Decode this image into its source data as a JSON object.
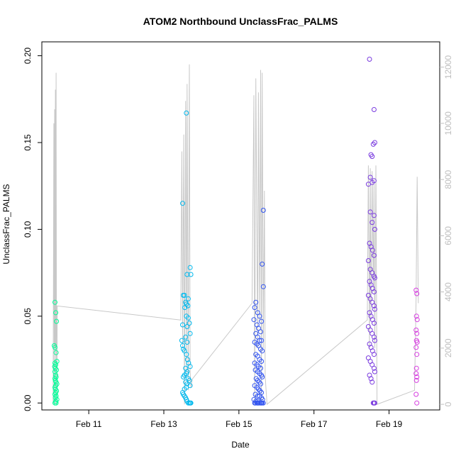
{
  "chart_data": {
    "type": "scatter",
    "title": "ATOM2 Northbound UnclassFrac_PALMS",
    "xlabel": "Date",
    "ylabel": "UnclassFrac_PALMS",
    "x_unit": "days (Feb)",
    "xlim": [
      9.75,
      20.35
    ],
    "ylim": [
      -0.004,
      0.208
    ],
    "y2lim": [
      -200,
      12900
    ],
    "x_ticks": [
      {
        "value": 11,
        "label": "Feb 11"
      },
      {
        "value": 13,
        "label": "Feb 13"
      },
      {
        "value": 15,
        "label": "Feb 15"
      },
      {
        "value": 17,
        "label": "Feb 17"
      },
      {
        "value": 19,
        "label": "Feb 19"
      }
    ],
    "y_ticks": [
      {
        "value": 0.0,
        "label": "0.00"
      },
      {
        "value": 0.05,
        "label": "0.05"
      },
      {
        "value": 0.1,
        "label": "0.10"
      },
      {
        "value": 0.15,
        "label": "0.15"
      },
      {
        "value": 0.2,
        "label": "0.20"
      }
    ],
    "y2_ticks": [
      {
        "value": 0,
        "label": "0"
      },
      {
        "value": 2000,
        "label": "2000"
      },
      {
        "value": 4000,
        "label": "4000"
      },
      {
        "value": 6000,
        "label": "6000"
      },
      {
        "value": 8000,
        "label": "8000"
      },
      {
        "value": 10000,
        "label": "10000"
      },
      {
        "value": 12000,
        "label": "12000"
      }
    ],
    "grid": false,
    "legend": "none",
    "colors": {
      "axis": "#000000",
      "secondary_axis": "#bebebe",
      "altitude_line": "#c8c8c8"
    },
    "series": [
      {
        "color": "#00ff99",
        "x": [
          10.1,
          10.12,
          10.14,
          10.08,
          10.1,
          10.13,
          10.15,
          10.1,
          10.12,
          10.09,
          10.11,
          10.14,
          10.1,
          10.12,
          10.13,
          10.1,
          10.11,
          10.13,
          10.15,
          10.12,
          10.1,
          10.11,
          10.14,
          10.12,
          10.1,
          10.13,
          10.11,
          10.15,
          10.12,
          10.1,
          10.13
        ],
        "y": [
          0.058,
          0.052,
          0.047,
          0.033,
          0.032,
          0.029,
          0.024,
          0.023,
          0.022,
          0.021,
          0.02,
          0.019,
          0.018,
          0.016,
          0.015,
          0.014,
          0.013,
          0.012,
          0.011,
          0.01,
          0.009,
          0.008,
          0.007,
          0.006,
          0.005,
          0.004,
          0.003,
          0.002,
          0.001,
          0.0,
          0.0
        ]
      },
      {
        "color": "#00b9ee",
        "x": [
          13.5,
          13.52,
          13.48,
          13.6,
          13.62,
          13.65,
          13.58,
          13.6,
          13.64,
          13.56,
          13.5,
          13.62,
          13.7,
          13.72,
          13.55,
          13.6,
          13.65,
          13.68,
          13.7,
          13.58,
          13.62,
          13.5,
          13.52,
          13.55,
          13.6,
          13.63,
          13.66,
          13.7,
          13.58,
          13.62,
          13.6,
          13.55,
          13.52,
          13.65,
          13.68,
          13.58,
          13.62,
          13.7,
          13.6,
          13.55,
          13.5,
          13.52,
          13.55,
          13.58,
          13.6,
          13.62,
          13.65,
          13.68,
          13.7,
          13.72
        ],
        "y": [
          0.115,
          0.062,
          0.036,
          0.167,
          0.074,
          0.06,
          0.058,
          0.057,
          0.056,
          0.055,
          0.045,
          0.044,
          0.078,
          0.074,
          0.062,
          0.05,
          0.049,
          0.046,
          0.04,
          0.038,
          0.035,
          0.033,
          0.031,
          0.03,
          0.028,
          0.025,
          0.023,
          0.021,
          0.02,
          0.018,
          0.017,
          0.016,
          0.015,
          0.014,
          0.013,
          0.012,
          0.011,
          0.01,
          0.009,
          0.008,
          0.006,
          0.005,
          0.004,
          0.003,
          0.002,
          0.001,
          0.0,
          0.0,
          0.0,
          0.0
        ]
      },
      {
        "color": "#3355f0",
        "x": [
          15.42,
          15.45,
          15.5,
          15.55,
          15.6,
          15.62,
          15.65,
          15.4,
          15.48,
          15.52,
          15.58,
          15.45,
          15.5,
          15.55,
          15.6,
          15.42,
          15.48,
          15.52,
          15.58,
          15.62,
          15.45,
          15.5,
          15.55,
          15.6,
          15.65,
          15.42,
          15.48,
          15.52,
          15.58,
          15.44,
          15.5,
          15.55,
          15.6,
          15.62,
          15.46,
          15.5,
          15.54,
          15.58,
          15.42,
          15.48,
          15.52,
          15.56,
          15.6,
          15.44,
          15.5,
          15.55,
          15.6,
          15.63,
          15.4,
          15.45,
          15.5,
          15.55,
          15.6,
          15.65,
          15.42,
          15.48,
          15.52,
          15.58,
          15.62,
          15.44,
          15.5
        ],
        "y": [
          0.055,
          0.058,
          0.052,
          0.05,
          0.047,
          0.08,
          0.111,
          0.048,
          0.045,
          0.043,
          0.041,
          0.04,
          0.038,
          0.036,
          0.036,
          0.035,
          0.034,
          0.033,
          0.031,
          0.03,
          0.028,
          0.027,
          0.025,
          0.024,
          0.067,
          0.023,
          0.022,
          0.021,
          0.02,
          0.019,
          0.018,
          0.017,
          0.016,
          0.015,
          0.014,
          0.013,
          0.012,
          0.011,
          0.01,
          0.009,
          0.008,
          0.007,
          0.006,
          0.005,
          0.004,
          0.004,
          0.003,
          0.002,
          0.002,
          0.001,
          0.001,
          0.0,
          0.0,
          0.0,
          0.0,
          0.0,
          0.0,
          0.0,
          0.0,
          0.0,
          0.0
        ]
      },
      {
        "color": "#7a3bdf",
        "x": [
          18.48,
          18.52,
          18.55,
          18.6,
          18.62,
          18.58,
          18.5,
          18.55,
          18.6,
          18.45,
          18.5,
          18.55,
          18.6,
          18.62,
          18.48,
          18.52,
          18.56,
          18.6,
          18.45,
          18.5,
          18.55,
          18.6,
          18.62,
          18.48,
          18.52,
          18.56,
          18.6,
          18.45,
          18.5,
          18.55,
          18.6,
          18.62,
          18.48,
          18.52,
          18.56,
          18.6,
          18.45,
          18.5,
          18.55,
          18.6,
          18.62,
          18.48,
          18.52,
          18.56,
          18.6,
          18.45,
          18.5,
          18.55,
          18.6,
          18.62,
          18.48,
          18.52,
          18.55,
          18.58,
          18.6,
          18.62
        ],
        "y": [
          0.198,
          0.143,
          0.142,
          0.169,
          0.15,
          0.149,
          0.13,
          0.127,
          0.128,
          0.126,
          0.11,
          0.104,
          0.108,
          0.1,
          0.092,
          0.09,
          0.088,
          0.085,
          0.082,
          0.077,
          0.075,
          0.073,
          0.072,
          0.07,
          0.068,
          0.066,
          0.064,
          0.062,
          0.06,
          0.058,
          0.056,
          0.054,
          0.052,
          0.05,
          0.048,
          0.046,
          0.044,
          0.042,
          0.04,
          0.038,
          0.036,
          0.034,
          0.032,
          0.03,
          0.028,
          0.026,
          0.024,
          0.022,
          0.02,
          0.018,
          0.016,
          0.014,
          0.012,
          0.0,
          0.0,
          0.0
        ]
      },
      {
        "color": "#d63ee0",
        "x": [
          19.72,
          19.74,
          19.73,
          19.75,
          19.72,
          19.74,
          19.73,
          19.75,
          19.72,
          19.74,
          19.73,
          19.72,
          19.74,
          19.73,
          19.72,
          19.74
        ],
        "y": [
          0.065,
          0.063,
          0.05,
          0.048,
          0.042,
          0.04,
          0.036,
          0.035,
          0.032,
          0.028,
          0.02,
          0.017,
          0.015,
          0.013,
          0.005,
          0.0
        ]
      }
    ],
    "secondary_series": {
      "x": [
        10.05,
        10.07,
        10.08,
        10.09,
        10.1,
        10.11,
        10.12,
        10.13,
        10.14,
        10.15,
        10.16,
        13.45,
        13.48,
        13.5,
        13.53,
        13.55,
        13.58,
        13.6,
        13.62,
        13.65,
        13.68,
        13.7,
        13.72,
        13.76,
        15.35,
        15.4,
        15.42,
        15.45,
        15.5,
        15.52,
        15.55,
        15.58,
        15.6,
        15.62,
        15.65,
        15.68,
        15.7,
        15.75,
        18.42,
        18.45,
        18.48,
        18.5,
        18.52,
        18.55,
        18.58,
        18.6,
        18.62,
        18.65,
        18.68,
        19.68,
        19.72,
        19.75,
        19.78
      ],
      "y": [
        0,
        10000,
        0,
        10500,
        2000,
        11200,
        0,
        11800,
        3000,
        0,
        3500,
        3000,
        9000,
        2000,
        9600,
        0,
        10800,
        1000,
        11400,
        500,
        12100,
        1200,
        600,
        900,
        3600,
        11000,
        0,
        11600,
        2000,
        11100,
        3000,
        11900,
        0,
        11800,
        2000,
        7600,
        1000,
        0,
        3000,
        8500,
        2000,
        8400,
        3000,
        8300,
        4000,
        8000,
        2000,
        8500,
        0,
        500,
        3800,
        8100,
        3600
      ]
    }
  }
}
